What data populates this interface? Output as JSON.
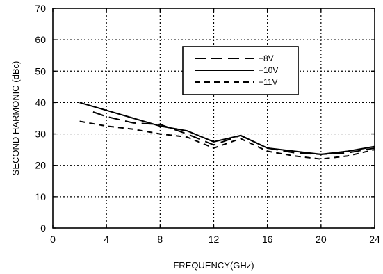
{
  "chart_data": {
    "type": "line",
    "title": "",
    "xlabel": "FREQUENCY(GHz)",
    "ylabel": "SECOND HARMONIC (dBc)",
    "xlim": [
      0,
      24
    ],
    "ylim": [
      0,
      70
    ],
    "xticks": [
      0,
      4,
      8,
      12,
      16,
      20,
      24
    ],
    "yticks": [
      0,
      10,
      20,
      30,
      40,
      50,
      60,
      70
    ],
    "x_tick_labels": [
      "0",
      "4",
      "8",
      "12",
      "16",
      "20",
      "24"
    ],
    "y_tick_labels": [
      "0",
      "10",
      "20",
      "30",
      "40",
      "50",
      "60",
      "70"
    ],
    "grid": true,
    "grid_style": "dotted",
    "legend_position": "top-right",
    "series": [
      {
        "name": "+8V",
        "line_style": "long-dash",
        "color": "#000000",
        "x": [
          3,
          4,
          6,
          8,
          10,
          12,
          14,
          16,
          18,
          20,
          22,
          24
        ],
        "y": [
          37,
          35.5,
          33.5,
          33,
          30,
          26.5,
          29.5,
          25.5,
          24,
          23.5,
          24,
          25.5
        ]
      },
      {
        "name": "+10V",
        "line_style": "solid",
        "color": "#000000",
        "x": [
          2,
          4,
          6,
          8,
          10,
          12,
          14,
          16,
          18,
          20,
          22,
          24
        ],
        "y": [
          40,
          37.5,
          35,
          32.5,
          31,
          27.5,
          29.5,
          25.5,
          24.5,
          23.5,
          24.5,
          26
        ]
      },
      {
        "name": "+11V",
        "line_style": "short-dash",
        "color": "#000000",
        "x": [
          2,
          4,
          6,
          8,
          10,
          12,
          14,
          16,
          18,
          20,
          22,
          24
        ],
        "y": [
          34,
          32.5,
          31.5,
          30,
          29,
          25.5,
          28.5,
          24.5,
          23,
          22,
          23,
          25
        ]
      }
    ]
  }
}
